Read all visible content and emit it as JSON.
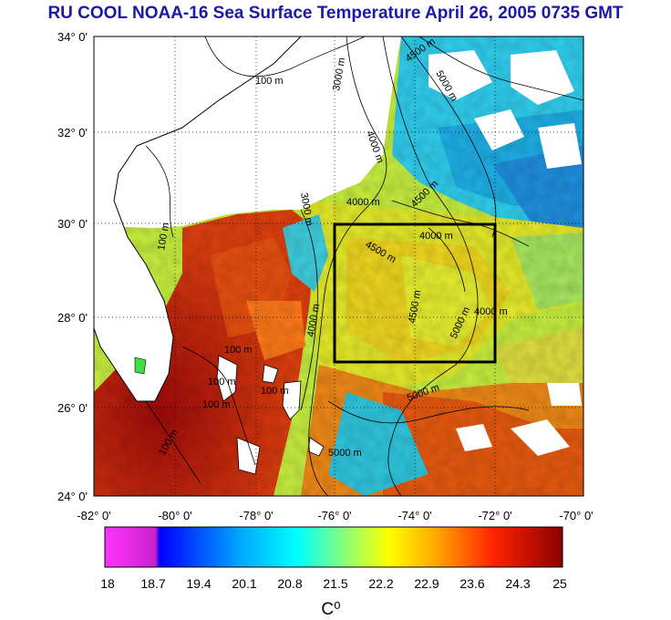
{
  "title": "RU COOL  NOAA-16 Sea Surface Temperature April 26, 2005 0735 GMT",
  "map": {
    "lat_labels": [
      "34° 0'",
      "32° 0'",
      "30° 0'",
      "28° 0'",
      "26° 0'",
      "24° 0'"
    ],
    "lon_labels": [
      "-82° 0'",
      "-80° 0'",
      "-78° 0'",
      "-76° 0'",
      "-74° 0'",
      "-72° 0'",
      "-70° 0'"
    ],
    "contour_labels": [
      "100 m",
      "3000 m",
      "4000 m",
      "4500 m",
      "5000 m",
      "4000 m",
      "4500 m",
      "4000 m",
      "4500 m",
      "4500 m",
      "5000 m",
      "4000 m",
      "5000 m",
      "100 m",
      "100 m",
      "100 m",
      "100 m",
      "100 m",
      "100 m",
      "3000 m",
      "4000 m",
      "5000 m"
    ],
    "colors": {
      "land": "#ffffff",
      "cloud": "#ffffff",
      "warm": "#b3140f",
      "mid": "#f0e020",
      "cool": "#20c8f0",
      "box": "#000000"
    }
  },
  "colorbar": {
    "ticks": [
      "18",
      "18.7",
      "19.4",
      "20.1",
      "20.8",
      "21.5",
      "22.2",
      "22.9",
      "23.6",
      "24.3",
      "25"
    ],
    "unit": "C⁰",
    "colors": [
      "#ff33ff",
      "#0000ff",
      "#00aaff",
      "#00ffff",
      "#aaff55",
      "#ffff00",
      "#ffaa00",
      "#ff3300",
      "#8b0000"
    ]
  }
}
